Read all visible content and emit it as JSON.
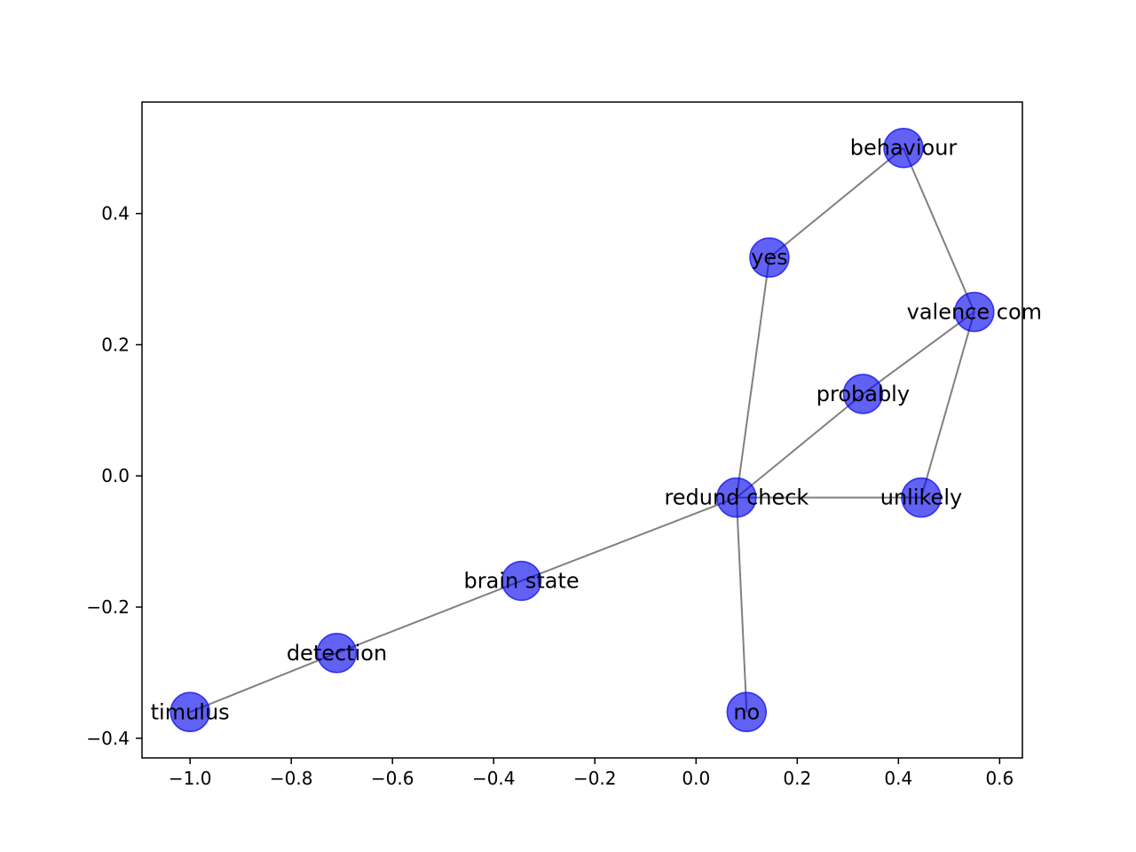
{
  "chart_data": {
    "type": "scatter",
    "subtype": "network-graph",
    "title": "",
    "xlabel": "",
    "ylabel": "",
    "xlim": [
      -1.095,
      0.645
    ],
    "ylim": [
      -0.43,
      0.57
    ],
    "x_ticks": [
      {
        "value": -1.0,
        "label": "−1.0"
      },
      {
        "value": -0.8,
        "label": "−0.8"
      },
      {
        "value": -0.6,
        "label": "−0.6"
      },
      {
        "value": -0.4,
        "label": "−0.4"
      },
      {
        "value": -0.2,
        "label": "−0.2"
      },
      {
        "value": 0.0,
        "label": "0.0"
      },
      {
        "value": 0.2,
        "label": "0.2"
      },
      {
        "value": 0.4,
        "label": "0.4"
      },
      {
        "value": 0.6,
        "label": "0.6"
      }
    ],
    "y_ticks": [
      {
        "value": -0.4,
        "label": "−0.4"
      },
      {
        "value": -0.2,
        "label": "−0.2"
      },
      {
        "value": 0.0,
        "label": "0.0"
      },
      {
        "value": 0.2,
        "label": "0.2"
      },
      {
        "value": 0.4,
        "label": "0.4"
      }
    ],
    "grid": false,
    "node_color": "#0000ee",
    "node_opacity": 0.62,
    "edge_color": "#808080",
    "nodes": [
      {
        "id": "behaviour",
        "label": "behaviour",
        "x": 0.41,
        "y": 0.5
      },
      {
        "id": "yes",
        "label": "yes",
        "x": 0.145,
        "y": 0.333
      },
      {
        "id": "valence_com",
        "label": "valence com",
        "x": 0.55,
        "y": 0.25
      },
      {
        "id": "probably",
        "label": "probably",
        "x": 0.33,
        "y": 0.125
      },
      {
        "id": "unlikely",
        "label": "unlikely",
        "x": 0.445,
        "y": -0.033
      },
      {
        "id": "redund_check",
        "label": "redund check",
        "x": 0.08,
        "y": -0.033
      },
      {
        "id": "brain_state",
        "label": "brain state",
        "x": -0.345,
        "y": -0.16
      },
      {
        "id": "detection",
        "label": "detection",
        "x": -0.71,
        "y": -0.27
      },
      {
        "id": "timulus",
        "label": "timulus",
        "x": -1.0,
        "y": -0.36
      },
      {
        "id": "no",
        "label": "no",
        "x": 0.1,
        "y": -0.36
      }
    ],
    "edges": [
      [
        "behaviour",
        "yes"
      ],
      [
        "behaviour",
        "valence_com"
      ],
      [
        "yes",
        "redund_check"
      ],
      [
        "valence_com",
        "probably"
      ],
      [
        "valence_com",
        "unlikely"
      ],
      [
        "probably",
        "redund_check"
      ],
      [
        "unlikely",
        "redund_check"
      ],
      [
        "redund_check",
        "brain_state"
      ],
      [
        "redund_check",
        "no"
      ],
      [
        "brain_state",
        "detection"
      ],
      [
        "detection",
        "timulus"
      ]
    ]
  }
}
